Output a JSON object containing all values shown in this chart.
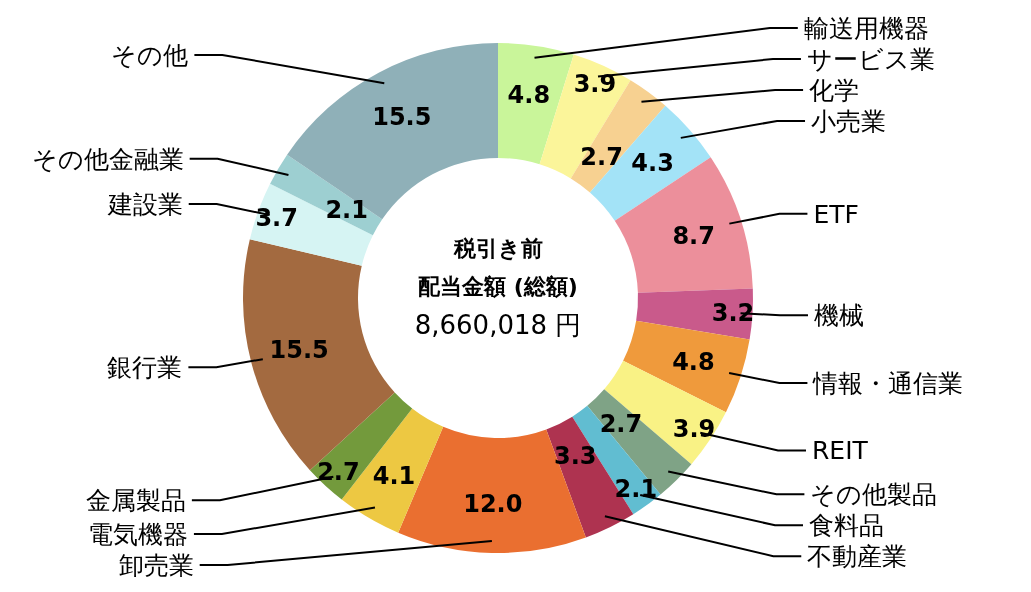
{
  "chart_data": {
    "type": "donut",
    "title": "税引き前",
    "subtitle": "配当金額 (総額)",
    "annotations": [
      "8,660,018 円"
    ],
    "categories": [
      "輸送用機器",
      "サービス業",
      "化学",
      "小売業",
      "ETF",
      "機械",
      "情報・通信業",
      "REIT",
      "その他製品",
      "食料品",
      "不動産業",
      "卸売業",
      "電気機器",
      "金属製品",
      "銀行業",
      "建設業",
      "その他金融業",
      "その他"
    ],
    "values": [
      4.8,
      3.9,
      2.7,
      4.3,
      8.7,
      3.2,
      4.8,
      3.9,
      2.7,
      2.1,
      3.3,
      12.0,
      4.1,
      2.7,
      15.5,
      3.7,
      2.1,
      15.5
    ],
    "value_labels": [
      "4.8",
      "3.9",
      "2.7",
      "4.3",
      "8.7",
      "3.2",
      "4.8",
      "3.9",
      "2.7",
      "2.1",
      "3.3",
      "12.0",
      "4.1",
      "2.7",
      "15.5",
      "3.7",
      "2.1",
      "15.5"
    ],
    "colors": [
      "#c9f59a",
      "#fbf59a",
      "#f7d191",
      "#a3e3f7",
      "#ec8f9b",
      "#c95a8b",
      "#ef9a3c",
      "#f9f285",
      "#7fa386",
      "#61bdd1",
      "#ae3350",
      "#ea6f30",
      "#edc842",
      "#739a3c",
      "#a36a40",
      "#d6f4f3",
      "#9dcfd1",
      "#8fb0b8"
    ]
  }
}
